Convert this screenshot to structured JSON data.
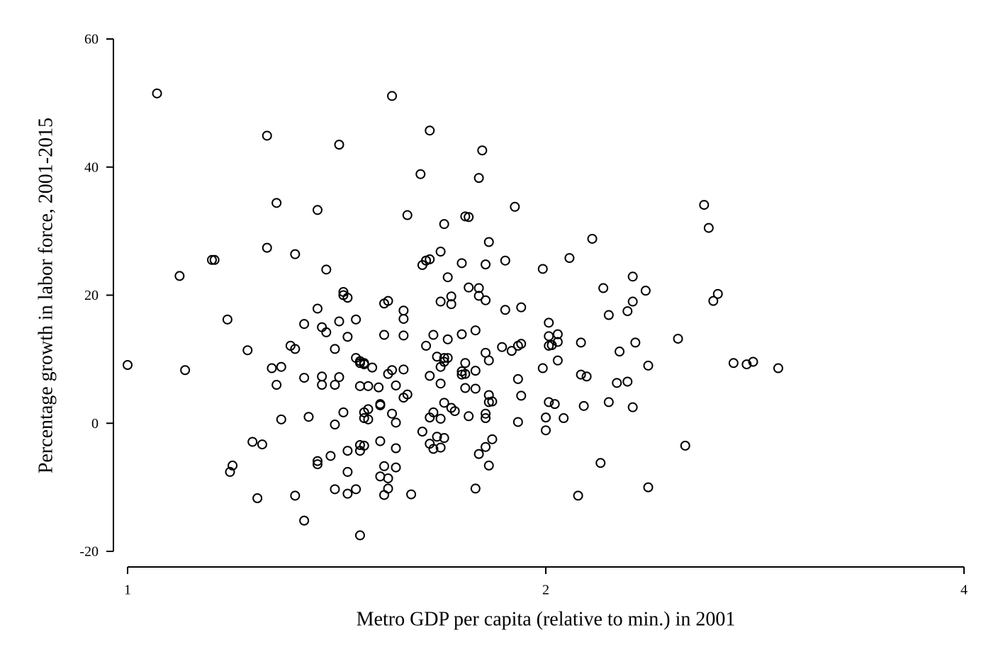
{
  "chart_data": {
    "type": "scatter",
    "x_label": "Metro GDP per capita (relative to min.) in 2001",
    "y_label": "Percentage growth in labor force, 2001-2015",
    "xscale": "log",
    "xlim": [
      1,
      4
    ],
    "xticks": [
      1,
      2,
      4
    ],
    "ylim": [
      -20,
      60
    ],
    "yticks": [
      -20,
      0,
      20,
      40,
      60
    ],
    "color": "#000000",
    "x": [
      1.0,
      1.05,
      1.09,
      1.1,
      1.15,
      1.155,
      1.18,
      1.19,
      1.185,
      1.22,
      1.23,
      1.24,
      1.25,
      1.26,
      1.26,
      1.27,
      1.28,
      1.28,
      1.29,
      1.29,
      1.31,
      1.32,
      1.32,
      1.32,
      1.34,
      1.34,
      1.34,
      1.35,
      1.37,
      1.37,
      1.37,
      1.37,
      1.38,
      1.38,
      1.38,
      1.39,
      1.39,
      1.4,
      1.41,
      1.41,
      1.41,
      1.41,
      1.42,
      1.42,
      1.42,
      1.43,
      1.43,
      1.43,
      1.44,
      1.44,
      1.44,
      1.44,
      1.44,
      1.46,
      1.46,
      1.46,
      1.47,
      1.47,
      1.47,
      1.47,
      1.47,
      1.47,
      1.48,
      1.48,
      1.48,
      1.48,
      1.48,
      1.49,
      1.49,
      1.49,
      1.5,
      1.516,
      1.52,
      1.52,
      1.52,
      1.52,
      1.53,
      1.53,
      1.53,
      1.53,
      1.54,
      1.54,
      1.54,
      1.54,
      1.55,
      1.55,
      1.55,
      1.56,
      1.56,
      1.56,
      1.56,
      1.58,
      1.58,
      1.58,
      1.58,
      1.58,
      1.59,
      1.59,
      1.6,
      1.625,
      1.63,
      1.63,
      1.64,
      1.64,
      1.65,
      1.64,
      1.65,
      1.65,
      1.65,
      1.65,
      1.66,
      1.66,
      1.66,
      1.67,
      1.67,
      1.68,
      1.68,
      1.68,
      1.68,
      1.68,
      1.68,
      1.69,
      1.69,
      1.69,
      1.69,
      1.69,
      1.7,
      1.7,
      1.7,
      1.71,
      1.71,
      1.71,
      1.72,
      1.74,
      1.74,
      1.74,
      1.74,
      1.75,
      1.75,
      1.75,
      1.75,
      1.76,
      1.76,
      1.76,
      1.78,
      1.78,
      1.78,
      1.78,
      1.79,
      1.79,
      1.79,
      1.79,
      1.8,
      1.81,
      1.81,
      1.81,
      1.81,
      1.81,
      1.81,
      1.82,
      1.82,
      1.82,
      1.82,
      1.82,
      1.83,
      1.83,
      1.86,
      1.87,
      1.87,
      1.89,
      1.9,
      1.91,
      1.91,
      1.91,
      1.92,
      1.92,
      1.92,
      1.99,
      1.99,
      2.0,
      2.0,
      2.01,
      2.01,
      2.01,
      2.01,
      2.02,
      2.03,
      2.04,
      2.04,
      2.04,
      2.06,
      2.08,
      2.11,
      2.12,
      2.12,
      2.13,
      2.14,
      2.16,
      2.19,
      2.2,
      2.22,
      2.22,
      2.25,
      2.26,
      2.29,
      2.29,
      2.31,
      2.31,
      2.31,
      2.32,
      2.36,
      2.37,
      2.37,
      2.49,
      2.52,
      2.6,
      2.62,
      2.64,
      2.66,
      2.73,
      2.79,
      2.82,
      2.94
    ],
    "values": [
      9.1,
      51.5,
      23.0,
      8.3,
      25.5,
      25.5,
      16.2,
      -6.6,
      -7.6,
      11.4,
      -2.9,
      -11.7,
      -3.3,
      44.9,
      27.4,
      8.6,
      6.0,
      34.4,
      8.8,
      0.6,
      12.1,
      26.4,
      -11.3,
      11.6,
      15.5,
      -15.2,
      7.1,
      1.0,
      17.9,
      -6.4,
      33.3,
      -5.9,
      6.0,
      7.3,
      15.0,
      24.0,
      14.2,
      -5.1,
      6.0,
      -10.3,
      -0.2,
      11.6,
      7.2,
      15.9,
      43.5,
      20.5,
      20.0,
      1.7,
      -7.6,
      13.5,
      19.6,
      -11.0,
      -4.3,
      10.2,
      -10.3,
      16.2,
      9.4,
      5.8,
      -3.4,
      -4.3,
      -17.5,
      9.7,
      9.4,
      -3.5,
      1.7,
      0.8,
      9.2,
      0.6,
      2.2,
      5.8,
      8.7,
      5.6,
      -8.3,
      3.0,
      -2.8,
      2.8,
      13.8,
      18.7,
      -6.7,
      -11.2,
      -10.2,
      19.1,
      7.7,
      -8.6,
      51.1,
      8.3,
      1.5,
      -6.9,
      5.9,
      0.1,
      -3.9,
      13.7,
      8.4,
      17.6,
      4.0,
      16.3,
      4.5,
      32.5,
      -11.1,
      38.9,
      -1.3,
      24.7,
      25.4,
      25.4,
      25.6,
      12.1,
      7.4,
      0.9,
      -3.2,
      45.7,
      13.8,
      1.7,
      -4.0,
      10.4,
      -2.1,
      6.2,
      26.8,
      19.0,
      -3.8,
      8.8,
      0.7,
      9.6,
      31.1,
      -2.3,
      3.2,
      10.2,
      10.2,
      22.8,
      13.1,
      2.4,
      18.6,
      19.8,
      1.9,
      8.1,
      25.0,
      7.6,
      13.9,
      5.5,
      9.4,
      7.7,
      32.3,
      32.2,
      1.1,
      21.2,
      5.4,
      -10.2,
      8.2,
      14.5,
      38.3,
      19.9,
      21.1,
      -4.8,
      42.6,
      0.8,
      11.0,
      -3.7,
      24.8,
      19.2,
      1.5,
      -6.6,
      4.4,
      3.3,
      9.8,
      28.3,
      3.4,
      -2.5,
      11.9,
      25.4,
      17.7,
      11.3,
      33.8,
      6.9,
      0.2,
      12.1,
      18.1,
      12.4,
      4.3,
      8.6,
      24.1,
      0.9,
      -1.1,
      15.7,
      13.6,
      12.1,
      3.3,
      12.2,
      3.0,
      12.7,
      13.9,
      9.8,
      0.8,
      25.8,
      -11.3,
      12.6,
      7.6,
      2.7,
      7.3,
      28.8,
      -6.2,
      21.1,
      3.3,
      16.9,
      6.3,
      11.2,
      17.5,
      6.5,
      22.9,
      19.0,
      2.5,
      12.6,
      20.7,
      9.0,
      -10.0,
      13.2,
      -3.5,
      34.1,
      30.5,
      19.1,
      20.2,
      9.4,
      9.2,
      9.6,
      8.6
    ]
  }
}
